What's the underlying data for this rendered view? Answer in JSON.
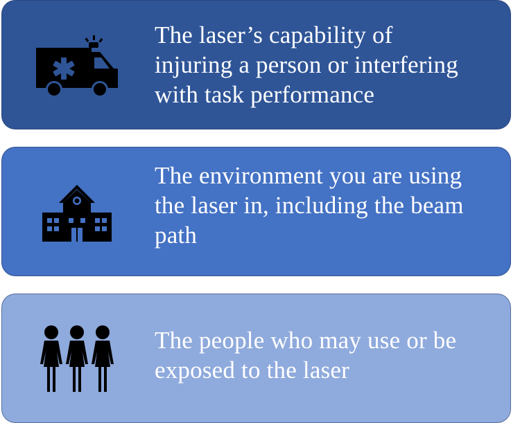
{
  "cards": [
    {
      "text": "The laser’s capability of\ninjuring a person or interfering\nwith task performance",
      "icon": "ambulance-icon",
      "color": "#2f5597"
    },
    {
      "text": "The environment you are using\nthe laser in, including the beam\npath",
      "icon": "school-building-icon",
      "color": "#4472c4"
    },
    {
      "text": "The people who may use or be\nexposed to the laser",
      "icon": "people-group-icon",
      "color": "#8faadc"
    }
  ]
}
